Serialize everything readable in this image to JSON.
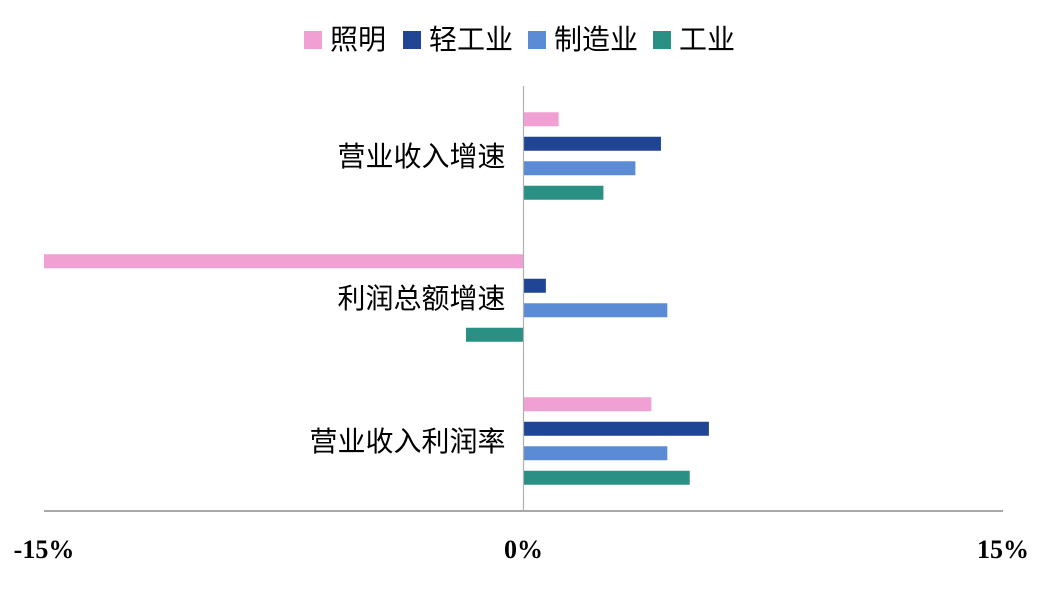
{
  "chart_data": {
    "type": "bar",
    "orientation": "horizontal",
    "categories": [
      "营业收入增速",
      "利润总额增速",
      "营业收入利润率"
    ],
    "series": [
      {
        "name": "照明",
        "color": "#F0A0D2",
        "values": [
          1.1,
          -15.0,
          4.0
        ]
      },
      {
        "name": "轻工业",
        "color": "#1F4594",
        "values": [
          4.3,
          0.7,
          5.8
        ]
      },
      {
        "name": "制造业",
        "color": "#5B8BD5",
        "values": [
          3.5,
          4.5,
          4.5
        ]
      },
      {
        "name": "工业",
        "color": "#2A9083",
        "values": [
          2.5,
          -1.8,
          5.2
        ]
      }
    ],
    "xlim": [
      -15,
      15
    ],
    "xticks": [
      "-15%",
      "0%",
      "15%"
    ],
    "legend_position": "top",
    "grid": false
  }
}
